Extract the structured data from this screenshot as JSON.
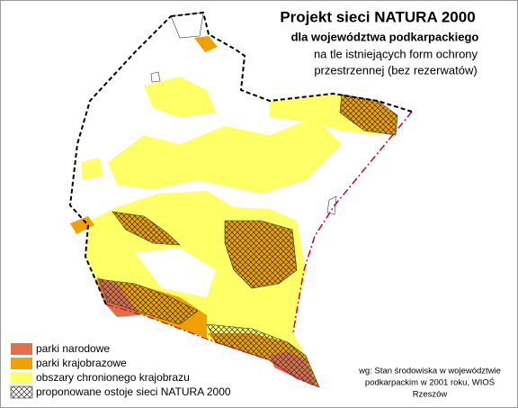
{
  "title": "Projekt sieci NATURA 2000",
  "subtitle": "dla województwa podkarpackiego",
  "description": [
    "na tle istniejących form ochrony",
    "przestrzennej (bez rezerwatów)"
  ],
  "legend": [
    {
      "label": "parki narodowe"
    },
    {
      "label": "parki krajobrazowe"
    },
    {
      "label": "obszary chronionego krajobrazu"
    },
    {
      "label": "proponowane ostoje sieci NATURA 2000"
    }
  ],
  "source": [
    "wg: Stan środowiska w województwie",
    "podkarpackim w 2001 roku, WIOŚ",
    "Rzeszów"
  ]
}
